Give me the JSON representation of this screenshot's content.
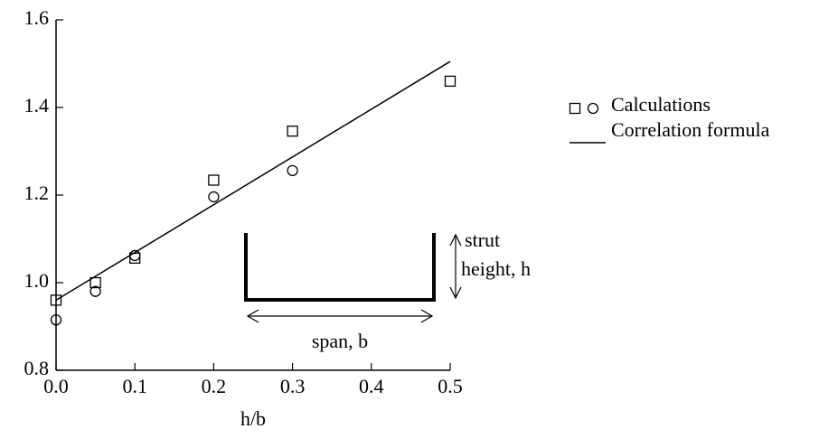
{
  "chart_data": {
    "type": "scatter",
    "xlabel": "h/b",
    "xlim": [
      0,
      0.5
    ],
    "ylim": [
      0.8,
      1.6
    ],
    "xticks": [
      {
        "value": 0,
        "label": "0.0"
      },
      0.1,
      0.2,
      0.3,
      0.4,
      0.5
    ],
    "yticks": [
      0.8,
      {
        "value": 1.0,
        "label": "1.0"
      },
      1.2,
      1.4,
      1.6
    ],
    "series": [
      {
        "name": "Calculations",
        "type": "scatter",
        "marker": "square",
        "color": "#000000",
        "x": [
          0,
          0.05,
          0.1,
          0.2,
          0.3,
          0.5
        ],
        "values": [
          0.96,
          1.0,
          1.056,
          1.234,
          1.346,
          1.46
        ]
      },
      {
        "type": "scatter",
        "marker": "circle",
        "color": "#000000",
        "x": [
          0,
          0.05,
          0.1,
          0.2,
          0.3
        ],
        "values": [
          0.915,
          0.98,
          1.062,
          1.196,
          1.256
        ]
      },
      {
        "name": "Correlation formula",
        "type": "line",
        "color": "#000000",
        "x": [
          0,
          0.5
        ],
        "values": [
          0.96,
          1.505
        ]
      }
    ],
    "annotations": [
      "strut",
      "height, h",
      "span, b"
    ]
  }
}
